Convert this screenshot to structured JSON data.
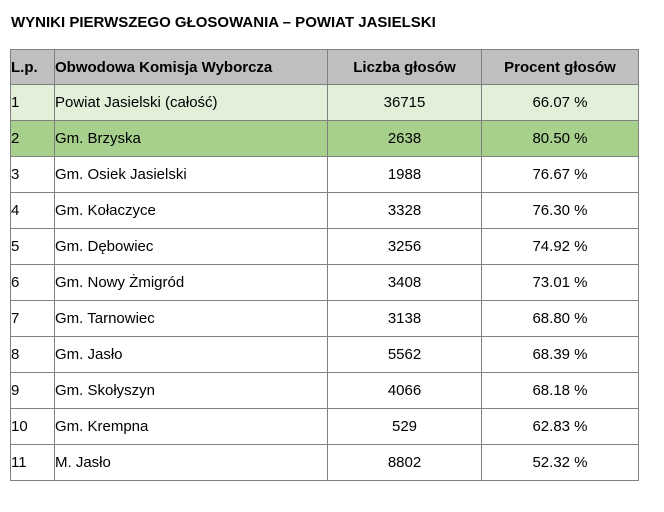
{
  "title": "WYNIKI PIERWSZEGO GŁOSOWANIA – POWIAT JASIELSKI",
  "table": {
    "headers": {
      "lp": "L.p.",
      "name": "Obwodowa Komisja Wyborcza",
      "votes": "Liczba głosów",
      "percent": "Procent głosów"
    },
    "rows": [
      {
        "lp": "1",
        "name": "Powiat Jasielski (całość)",
        "votes": "36715",
        "percent": "66.07 %"
      },
      {
        "lp": "2",
        "name": "Gm. Brzyska",
        "votes": "2638",
        "percent": "80.50 %"
      },
      {
        "lp": "3",
        "name": "Gm. Osiek Jasielski",
        "votes": "1988",
        "percent": "76.67 %"
      },
      {
        "lp": "4",
        "name": "Gm. Kołaczyce",
        "votes": "3328",
        "percent": "76.30 %"
      },
      {
        "lp": "5",
        "name": "Gm. Dębowiec",
        "votes": "3256",
        "percent": "74.92 %"
      },
      {
        "lp": "6",
        "name": "Gm. Nowy Żmigród",
        "votes": "3408",
        "percent": "73.01 %"
      },
      {
        "lp": "7",
        "name": "Gm. Tarnowiec",
        "votes": "3138",
        "percent": "68.80 %"
      },
      {
        "lp": "8",
        "name": "Gm. Jasło",
        "votes": "5562",
        "percent": "68.39 %"
      },
      {
        "lp": "9",
        "name": "Gm. Skołyszyn",
        "votes": "4066",
        "percent": "68.18 %"
      },
      {
        "lp": "10",
        "name": "Gm. Krempna",
        "votes": "529",
        "percent": "62.83 %"
      },
      {
        "lp": "11",
        "name": "M. Jasło",
        "votes": "8802",
        "percent": "52.32 %"
      }
    ]
  },
  "colors": {
    "header_bg": "#bfbfbf",
    "row1_bg": "#e2efd9",
    "row2_bg": "#a8d08d",
    "border": "#7f7f7f"
  }
}
